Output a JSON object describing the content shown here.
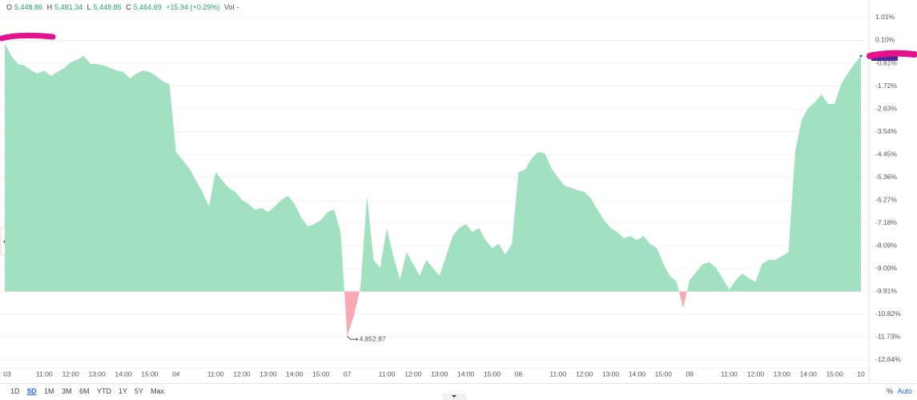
{
  "chart_data": {
    "type": "baseline-area",
    "ohlc": [
      {
        "label": "O",
        "value": "5,448.86"
      },
      {
        "label": "H",
        "value": "5,481.34"
      },
      {
        "label": "L",
        "value": "5,448.86"
      },
      {
        "label": "C",
        "value": "5,464.69"
      }
    ],
    "change": "+15.94 (+0.29%)",
    "volume_label": "Vol",
    "volume": "-",
    "annotation": "4,852.87",
    "categories": [
      "03",
      null,
      null,
      null,
      null,
      null,
      "11:00",
      null,
      null,
      null,
      "12:00",
      null,
      null,
      null,
      "13:00",
      null,
      null,
      null,
      "14:00",
      null,
      null,
      null,
      "15:00",
      null,
      null,
      null,
      "04",
      null,
      null,
      null,
      null,
      null,
      "11:00",
      null,
      null,
      null,
      "12:00",
      null,
      null,
      null,
      "13:00",
      null,
      null,
      null,
      "14:00",
      null,
      null,
      null,
      "15:00",
      null,
      null,
      null,
      "07",
      null,
      null,
      null,
      null,
      null,
      "11:00",
      null,
      null,
      null,
      "12:00",
      null,
      null,
      null,
      "13:00",
      null,
      null,
      null,
      "14:00",
      null,
      null,
      null,
      "15:00",
      null,
      null,
      null,
      "08",
      null,
      null,
      null,
      null,
      null,
      "11:00",
      null,
      null,
      null,
      "12:00",
      null,
      null,
      null,
      "13:00",
      null,
      null,
      null,
      "14:00",
      null,
      null,
      null,
      "15:00",
      null,
      null,
      null,
      "09",
      null,
      null,
      null,
      null,
      null,
      "11:00",
      null,
      null,
      null,
      "12:00",
      null,
      null,
      null,
      "13:00",
      null,
      null,
      null,
      "14:00",
      null,
      null,
      null,
      "15:00",
      null,
      null,
      null,
      "10"
    ],
    "values": [
      -0.04,
      -0.52,
      -0.84,
      -0.9,
      -1.1,
      -1.22,
      -1.1,
      -1.32,
      -1.16,
      -1.0,
      -0.78,
      -0.68,
      -0.52,
      -0.84,
      -0.84,
      -0.9,
      -1.0,
      -1.1,
      -1.16,
      -1.41,
      -1.22,
      -1.1,
      -1.16,
      -1.32,
      -1.54,
      -1.64,
      -4.35,
      -4.67,
      -4.99,
      -5.47,
      -5.94,
      -6.52,
      -5.15,
      -5.47,
      -5.78,
      -5.94,
      -6.26,
      -6.42,
      -6.65,
      -6.58,
      -6.74,
      -6.52,
      -6.26,
      -6.1,
      -6.42,
      -6.96,
      -7.32,
      -7.22,
      -7.06,
      -6.74,
      -6.65,
      -7.54,
      -11.69,
      -10.89,
      -9.77,
      -6.1,
      -8.65,
      -8.97,
      -7.38,
      -8.5,
      -9.45,
      -8.34,
      -8.81,
      -9.29,
      -8.65,
      -8.97,
      -9.29,
      -8.5,
      -7.7,
      -7.38,
      -7.22,
      -7.54,
      -7.38,
      -7.86,
      -8.18,
      -8.02,
      -8.43,
      -8.02,
      -5.15,
      -5.05,
      -4.6,
      -4.35,
      -4.41,
      -4.99,
      -5.37,
      -5.69,
      -5.78,
      -5.88,
      -5.94,
      -6.2,
      -6.65,
      -7.06,
      -7.38,
      -7.54,
      -7.79,
      -7.7,
      -7.86,
      -7.7,
      -8.02,
      -8.18,
      -8.81,
      -9.29,
      -9.52,
      -10.57,
      -9.45,
      -9.13,
      -8.81,
      -8.75,
      -8.97,
      -9.39,
      -9.84,
      -9.45,
      -9.2,
      -9.39,
      -9.52,
      -8.81,
      -8.65,
      -8.65,
      -8.5,
      -8.34,
      -4.35,
      -3.07,
      -2.59,
      -2.37,
      -2.05,
      -2.43,
      -2.43,
      -1.64,
      -1.22,
      -0.84,
      -0.52
    ],
    "baseline": -9.91,
    "color_above": "#a2e0c2",
    "color_below": "#f7a9b4",
    "ylim": [
      -12.96,
      1.55
    ],
    "yticks": [
      {
        "value": 1.01,
        "label": "1.01%"
      },
      {
        "value": 0.1,
        "label": "0.10%"
      },
      {
        "value": -0.81,
        "label": "-0.81%"
      },
      {
        "value": -1.72,
        "label": "-1.72%"
      },
      {
        "value": -2.63,
        "label": "-2.63%"
      },
      {
        "value": -3.54,
        "label": "-3.54%"
      },
      {
        "value": -4.45,
        "label": "-4.45%"
      },
      {
        "value": -5.36,
        "label": "-5.36%"
      },
      {
        "value": -6.27,
        "label": "-6.27%"
      },
      {
        "value": -7.18,
        "label": "-7.18%"
      },
      {
        "value": -8.09,
        "label": "-8.09%"
      },
      {
        "value": -9,
        "label": "-9.00%"
      },
      {
        "value": -9.91,
        "label": "-9.91%"
      },
      {
        "value": -10.82,
        "label": "-10.82%"
      },
      {
        "value": -11.73,
        "label": "-11.73%"
      },
      {
        "value": -12.64,
        "label": "-12.64%"
      }
    ],
    "grid": true,
    "ranges": [
      "1D",
      "5D",
      "1M",
      "3M",
      "6M",
      "YTD",
      "1Y",
      "5Y",
      "Max"
    ],
    "scale_mode": "%",
    "scale_auto": "Auto"
  }
}
